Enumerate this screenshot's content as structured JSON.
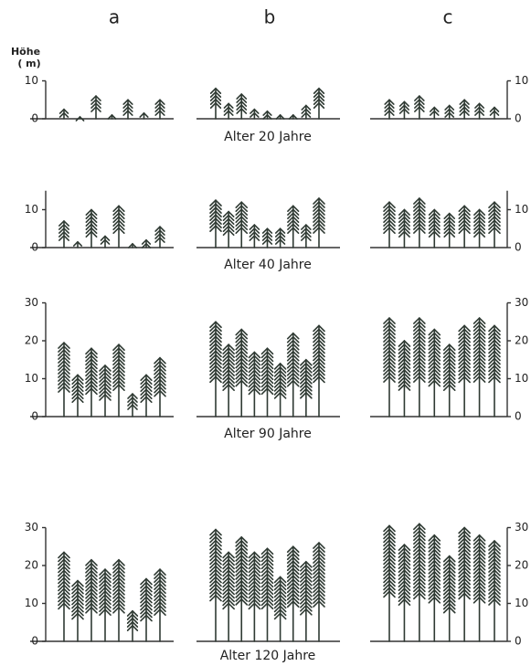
{
  "panel_labels": [
    "a",
    "b",
    "c"
  ],
  "y_label": "Höhe",
  "y_unit": "( m)",
  "chart_data": [
    {
      "type": "tree-stand",
      "title": "Alter 20 Jahre",
      "ylim": [
        0,
        10
      ],
      "yticks": [
        0,
        10
      ],
      "series": [
        {
          "values": [
            2.5,
            0.5,
            6,
            1,
            5,
            1.5,
            5
          ]
        },
        {
          "values": [
            8,
            4,
            6.5,
            2.5,
            2,
            1,
            1,
            3.5,
            8
          ]
        },
        {
          "values": [
            5,
            4.5,
            6,
            3,
            3.5,
            5,
            4,
            3
          ]
        }
      ]
    },
    {
      "type": "tree-stand",
      "title": "Alter 40 Jahre",
      "ylim": [
        0,
        15
      ],
      "yticks": [
        0,
        10
      ],
      "series": [
        {
          "values": [
            7,
            1.5,
            10,
            3,
            11,
            1,
            2,
            5.5
          ]
        },
        {
          "values": [
            12.5,
            9.5,
            12,
            6,
            5,
            5,
            11,
            6,
            13
          ]
        },
        {
          "values": [
            12,
            10,
            13,
            10,
            9,
            11,
            10,
            12
          ]
        }
      ]
    },
    {
      "type": "tree-stand",
      "title": "Alter 90 Jahre",
      "ylim": [
        0,
        30
      ],
      "yticks": [
        0,
        10,
        20,
        30
      ],
      "series": [
        {
          "values": [
            19.5,
            11,
            18,
            13.5,
            19,
            6,
            11,
            15.5
          ]
        },
        {
          "values": [
            25,
            19,
            23,
            17,
            18,
            14,
            22,
            15,
            24
          ]
        },
        {
          "values": [
            26,
            20,
            26,
            23,
            19,
            24,
            26,
            24
          ]
        }
      ]
    },
    {
      "type": "tree-stand",
      "title": "Alter 120 Jahre",
      "ylim": [
        0,
        30
      ],
      "yticks": [
        0,
        10,
        20,
        30
      ],
      "series": [
        {
          "values": [
            23.5,
            16,
            21.5,
            19,
            21.5,
            8,
            16.5,
            19
          ]
        },
        {
          "values": [
            29.5,
            23.5,
            27.5,
            23.5,
            24.5,
            17,
            25,
            21,
            26
          ]
        },
        {
          "values": [
            30.5,
            25.5,
            31,
            28,
            22.5,
            30,
            28,
            26.5
          ]
        }
      ]
    }
  ]
}
